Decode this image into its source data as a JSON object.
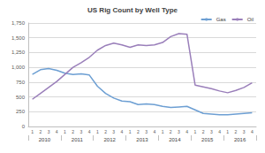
{
  "chart_data": {
    "type": "line",
    "title": "US Rig Count by Well Type",
    "categories": [
      "1",
      "2",
      "3",
      "4",
      "1",
      "2",
      "3",
      "4",
      "1",
      "2",
      "3",
      "4",
      "1",
      "2",
      "3",
      "4",
      "1",
      "2",
      "3",
      "4",
      "1",
      "2",
      "3",
      "4",
      "1",
      "2",
      "3",
      "4"
    ],
    "category_groups": [
      "2010",
      "2011",
      "2012",
      "2013",
      "2014",
      "2015",
      "2016"
    ],
    "series": [
      {
        "name": "Gas",
        "color": "#6d9fd3",
        "values": [
          880,
          960,
          980,
          950,
          900,
          880,
          890,
          870,
          680,
          560,
          480,
          430,
          420,
          370,
          380,
          370,
          340,
          320,
          330,
          340,
          280,
          220,
          210,
          200,
          200,
          210,
          220,
          230
        ]
      },
      {
        "name": "Oil",
        "color": "#9a7fba",
        "values": [
          460,
          560,
          660,
          760,
          880,
          1000,
          1080,
          1170,
          1290,
          1370,
          1410,
          1380,
          1340,
          1380,
          1370,
          1380,
          1420,
          1520,
          1570,
          1560,
          700,
          670,
          640,
          600,
          570,
          610,
          660,
          740
        ]
      }
    ],
    "ylim": [
      0,
      1750
    ],
    "yticks": [
      0,
      250,
      500,
      750,
      {
        "value": 1000,
        "label": "1,000"
      },
      {
        "value": 1250,
        "label": "1,250"
      },
      {
        "value": 1500,
        "label": "1,500"
      },
      {
        "value": 1750,
        "label": "1,750"
      }
    ],
    "grid": true,
    "legend": "top-right"
  }
}
